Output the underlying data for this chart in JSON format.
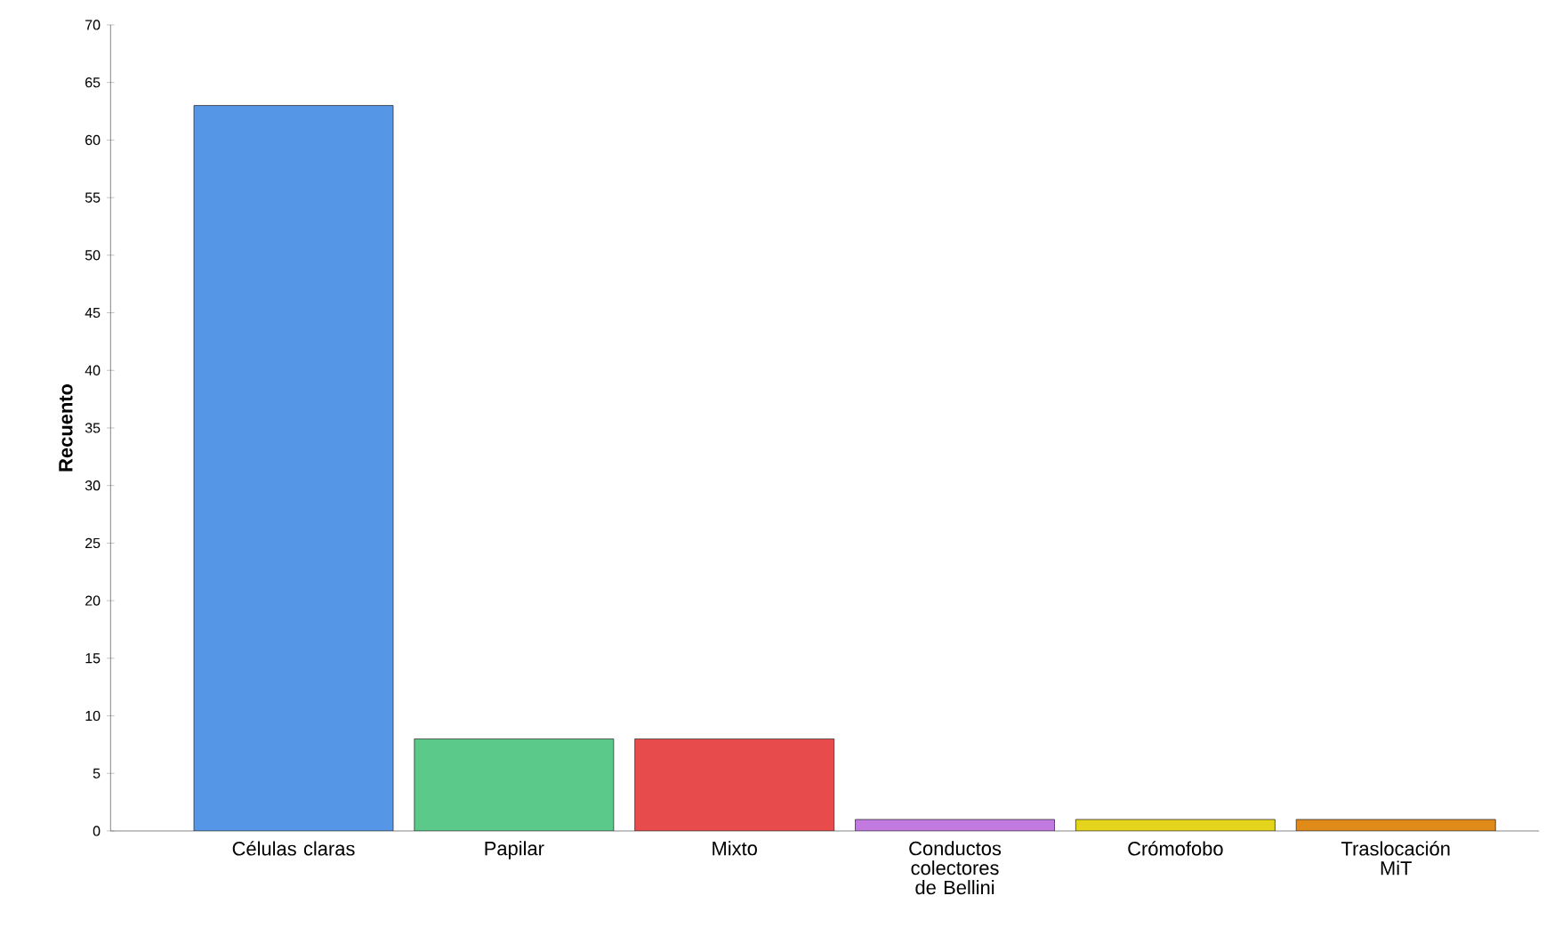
{
  "chart_data": {
    "type": "bar",
    "ylabel": "Recuento",
    "categories": [
      "Células claras",
      "Papilar",
      "Mixto",
      "Conductos colectores de Bellini",
      "Crómofobo",
      "Traslocación MiT"
    ],
    "values": [
      63,
      8,
      8,
      1,
      1,
      1
    ],
    "colors": [
      "#5596e6",
      "#5bc98a",
      "#e84b4b",
      "#c37ae0",
      "#e5d41c",
      "#e08a1a"
    ],
    "ylim": [
      0,
      70
    ],
    "yticks": [
      0,
      5,
      10,
      15,
      20,
      25,
      30,
      35,
      40,
      45,
      50,
      55,
      60,
      65,
      70
    ],
    "grid": false
  }
}
